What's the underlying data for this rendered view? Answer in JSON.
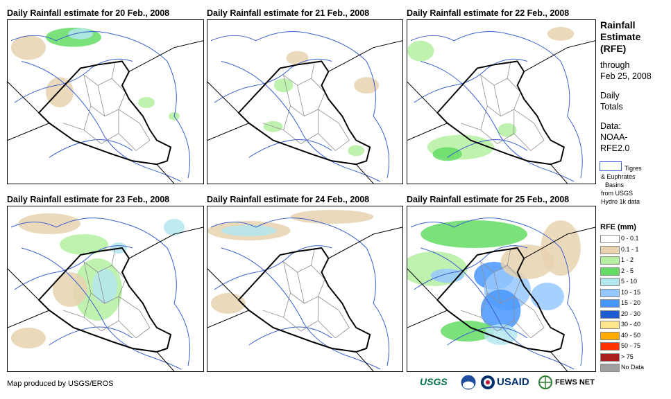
{
  "panels": [
    {
      "title": "Daily Rainfall estimate for 20 Feb., 2008"
    },
    {
      "title": "Daily Rainfall estimate for 21 Feb., 2008"
    },
    {
      "title": "Daily Rainfall estimate for 22 Feb., 2008"
    },
    {
      "title": "Daily Rainfall estimate for 23 Feb., 2008"
    },
    {
      "title": "Daily Rainfall estimate for 24 Feb., 2008"
    },
    {
      "title": "Daily Rainfall estimate for 25 Feb., 2008"
    }
  ],
  "sidebar": {
    "title_lines": [
      "Rainfall",
      "Estimate",
      "(RFE)"
    ],
    "through_lines": [
      "through",
      "Feb 25, 2008"
    ],
    "totals_lines": [
      "Daily",
      "Totals"
    ],
    "data_lines": [
      "Data:",
      "NOAA-",
      "RFE2.0"
    ],
    "basin_lines": [
      "Tigres",
      "& Euphrates",
      "Basins",
      "from USGS",
      "Hydro 1k data"
    ]
  },
  "legend": {
    "title": "RFE (mm)",
    "items": [
      {
        "label": "0 - 0.1",
        "color": "#ffffff"
      },
      {
        "label": "0.1 - 1",
        "color": "#e8d2b0"
      },
      {
        "label": "1 - 2",
        "color": "#b4f0a0"
      },
      {
        "label": "2 - 5",
        "color": "#64dc64"
      },
      {
        "label": "5 - 10",
        "color": "#b4e6f0"
      },
      {
        "label": "10 - 15",
        "color": "#96c8ff"
      },
      {
        "label": "15 - 20",
        "color": "#4696ff"
      },
      {
        "label": "20 - 30",
        "color": "#1e5ad2"
      },
      {
        "label": "30 - 40",
        "color": "#ffe68c"
      },
      {
        "label": "40 - 50",
        "color": "#ffaa00"
      },
      {
        "label": "50 - 75",
        "color": "#ff3200"
      },
      {
        "label": "> 75",
        "color": "#aa1e1e"
      },
      {
        "label": "No Data",
        "color": "#a0a0a0"
      }
    ]
  },
  "footer": {
    "credit": "Map produced by USGS/EROS",
    "logos": [
      "USGS",
      "NOAA",
      "USAID",
      "FEWS NET"
    ]
  },
  "colors": {
    "border": "#000000",
    "district": "#8c8c8c",
    "basin": "#3a5fcd"
  }
}
